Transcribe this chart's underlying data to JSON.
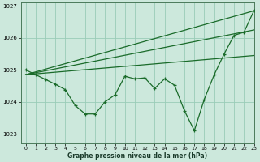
{
  "xlabel": "Graphe pression niveau de la mer (hPa)",
  "ylabel": "",
  "bg_color": "#cce8dc",
  "grid_color": "#99ccb8",
  "line_color": "#1a6b2a",
  "ylim": [
    1022.7,
    1027.1
  ],
  "xlim": [
    -0.5,
    23
  ],
  "yticks": [
    1023,
    1024,
    1025,
    1026,
    1027
  ],
  "xticks": [
    0,
    1,
    2,
    3,
    4,
    5,
    6,
    7,
    8,
    9,
    10,
    11,
    12,
    13,
    14,
    15,
    16,
    17,
    18,
    19,
    20,
    21,
    22,
    23
  ],
  "line_jagged": [
    1025.0,
    1024.85,
    1024.7,
    1024.55,
    1024.38,
    1023.88,
    1023.62,
    1023.62,
    1024.0,
    1024.22,
    1024.8,
    1024.72,
    1024.75,
    1024.42,
    1024.72,
    1024.52,
    1023.72,
    1023.1,
    1024.08,
    1024.85,
    1025.5,
    1026.08,
    1026.18,
    1026.85
  ],
  "trend1_x": [
    0,
    23
  ],
  "trend1_y": [
    1024.85,
    1025.45
  ],
  "trend2_x": [
    0,
    23
  ],
  "trend2_y": [
    1024.85,
    1026.25
  ],
  "trend3_x": [
    0,
    23
  ],
  "trend3_y": [
    1024.85,
    1026.85
  ],
  "figsize": [
    3.2,
    2.0
  ],
  "dpi": 100
}
